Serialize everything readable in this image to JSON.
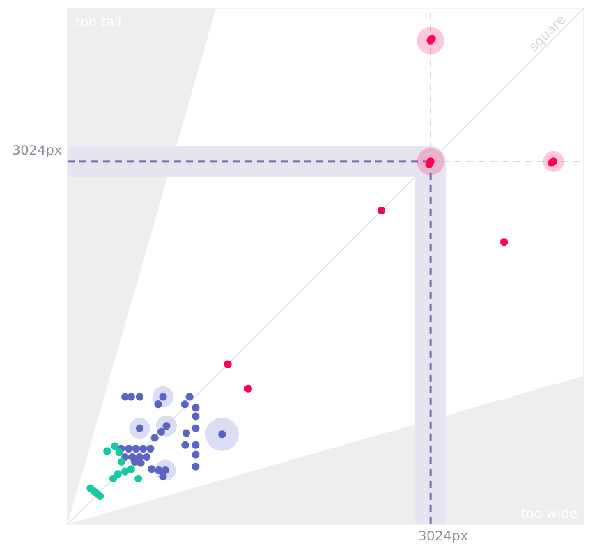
{
  "chart_data": {
    "type": "scatter",
    "title": "",
    "xlabel": "",
    "ylabel": "",
    "xlim": [
      0,
      4300
    ],
    "ylim": [
      0,
      4300
    ],
    "grid": false,
    "legend": "none",
    "regions": {
      "too_tall_label": "too tall",
      "too_wide_label": "too wide",
      "square_label": "square"
    },
    "reference": {
      "x": 3024,
      "y": 3024,
      "x_label": "3024px",
      "y_label": "3024px"
    },
    "colors": {
      "red": "#ff0050",
      "blue": "#5b63c4",
      "green": "#17c9a1",
      "region_fill": "#eeeeee",
      "reference_band": "#e6e4f1",
      "reference_line": "#7b6aaa"
    },
    "series": [
      {
        "color": "red",
        "points": [
          {
            "x": 3024,
            "y": 4032,
            "weight": 3
          },
          {
            "x": 3036,
            "y": 4048,
            "weight": 1
          },
          {
            "x": 3024,
            "y": 3024,
            "weight": 3
          },
          {
            "x": 3012,
            "y": 3000,
            "weight": 1
          },
          {
            "x": 4048,
            "y": 3024,
            "weight": 2
          },
          {
            "x": 4032,
            "y": 3012,
            "weight": 1
          },
          {
            "x": 2614,
            "y": 2614,
            "weight": 1
          },
          {
            "x": 3636,
            "y": 2352,
            "weight": 1
          },
          {
            "x": 1335,
            "y": 1335,
            "weight": 1
          },
          {
            "x": 1505,
            "y": 1130,
            "weight": 1
          }
        ]
      },
      {
        "color": "blue",
        "points": [
          {
            "x": 480,
            "y": 1062,
            "weight": 1
          },
          {
            "x": 530,
            "y": 1062,
            "weight": 1
          },
          {
            "x": 600,
            "y": 1062,
            "weight": 1
          },
          {
            "x": 795,
            "y": 1062,
            "weight": 2
          },
          {
            "x": 754,
            "y": 1000,
            "weight": 1
          },
          {
            "x": 1016,
            "y": 1062,
            "weight": 1
          },
          {
            "x": 977,
            "y": 1000,
            "weight": 1
          },
          {
            "x": 1067,
            "y": 970,
            "weight": 1
          },
          {
            "x": 1067,
            "y": 900,
            "weight": 1
          },
          {
            "x": 1067,
            "y": 800,
            "weight": 1
          },
          {
            "x": 824,
            "y": 820,
            "weight": 2
          },
          {
            "x": 780,
            "y": 770,
            "weight": 1
          },
          {
            "x": 600,
            "y": 800,
            "weight": 2
          },
          {
            "x": 726,
            "y": 720,
            "weight": 1
          },
          {
            "x": 990,
            "y": 760,
            "weight": 1
          },
          {
            "x": 1287,
            "y": 750,
            "weight": 4
          },
          {
            "x": 446,
            "y": 630,
            "weight": 1
          },
          {
            "x": 510,
            "y": 630,
            "weight": 1
          },
          {
            "x": 570,
            "y": 630,
            "weight": 1
          },
          {
            "x": 630,
            "y": 630,
            "weight": 1
          },
          {
            "x": 690,
            "y": 630,
            "weight": 1
          },
          {
            "x": 480,
            "y": 560,
            "weight": 1
          },
          {
            "x": 540,
            "y": 560,
            "weight": 1
          },
          {
            "x": 600,
            "y": 560,
            "weight": 1
          },
          {
            "x": 660,
            "y": 560,
            "weight": 1
          },
          {
            "x": 560,
            "y": 520,
            "weight": 1
          },
          {
            "x": 610,
            "y": 510,
            "weight": 1
          },
          {
            "x": 700,
            "y": 460,
            "weight": 1
          },
          {
            "x": 760,
            "y": 450,
            "weight": 1
          },
          {
            "x": 815,
            "y": 450,
            "weight": 2
          },
          {
            "x": 795,
            "y": 400,
            "weight": 1
          },
          {
            "x": 980,
            "y": 660,
            "weight": 1
          },
          {
            "x": 1067,
            "y": 660,
            "weight": 1
          },
          {
            "x": 1067,
            "y": 580,
            "weight": 1
          },
          {
            "x": 1067,
            "y": 480,
            "weight": 1
          }
        ]
      },
      {
        "color": "green",
        "points": [
          {
            "x": 330,
            "y": 610,
            "weight": 1
          },
          {
            "x": 395,
            "y": 650,
            "weight": 1
          },
          {
            "x": 430,
            "y": 600,
            "weight": 1
          },
          {
            "x": 450,
            "y": 520,
            "weight": 1
          },
          {
            "x": 530,
            "y": 460,
            "weight": 1
          },
          {
            "x": 480,
            "y": 440,
            "weight": 1
          },
          {
            "x": 420,
            "y": 420,
            "weight": 1
          },
          {
            "x": 380,
            "y": 380,
            "weight": 1
          },
          {
            "x": 590,
            "y": 380,
            "weight": 1
          },
          {
            "x": 190,
            "y": 300,
            "weight": 1
          },
          {
            "x": 220,
            "y": 275,
            "weight": 1
          },
          {
            "x": 245,
            "y": 255,
            "weight": 1
          },
          {
            "x": 270,
            "y": 235,
            "weight": 1
          }
        ]
      }
    ]
  }
}
